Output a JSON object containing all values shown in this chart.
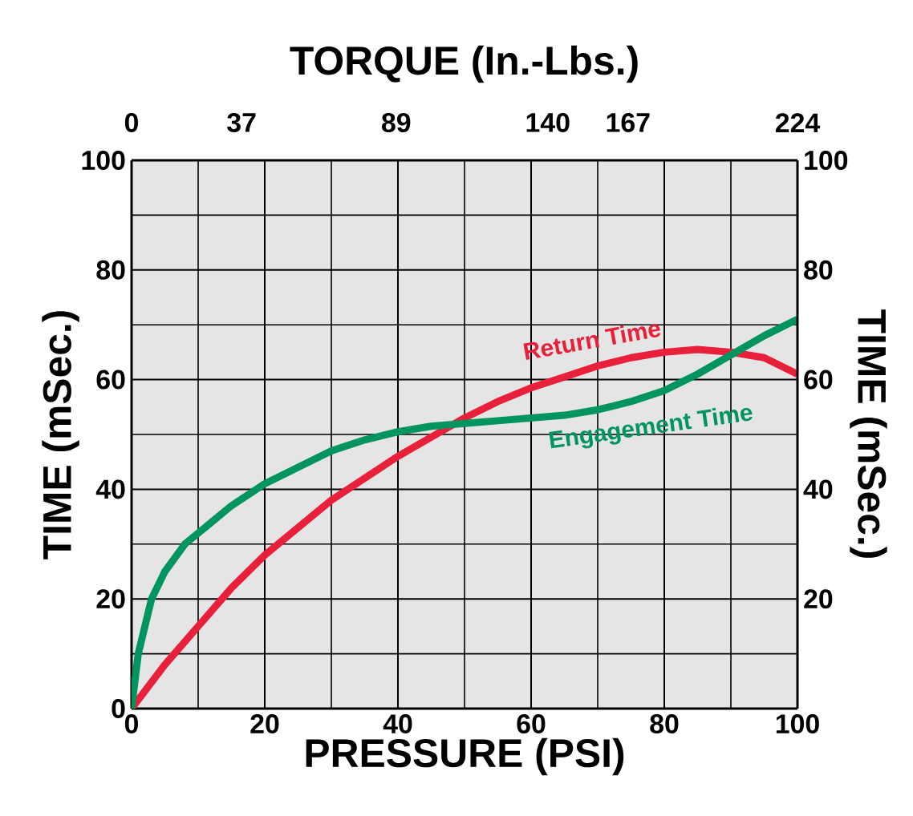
{
  "chart_data": {
    "type": "line",
    "xlabel": "PRESSURE (PSI)",
    "ylabel": "TIME (mSec.)",
    "y2label": "TIME (mSec.)",
    "x2label": "TORQUE (In.-Lbs.)",
    "xlim": [
      0,
      100
    ],
    "xticks": [
      0,
      20,
      40,
      60,
      80,
      100
    ],
    "x2lim": [
      0,
      224
    ],
    "x2ticks": [
      0,
      37,
      89,
      140,
      167,
      224
    ],
    "ylim": [
      0,
      100
    ],
    "yticks": [
      0,
      20,
      40,
      60,
      80,
      100
    ],
    "y2lim": [
      0,
      100
    ],
    "y2ticks": [
      20,
      40,
      60,
      80,
      100
    ],
    "grid": true,
    "legend": false,
    "marker": "none",
    "line_style": "solid",
    "series": [
      {
        "name": "Return Time",
        "color": "#e8203a",
        "x": [
          0,
          5,
          10,
          15,
          20,
          25,
          30,
          35,
          40,
          45,
          50,
          55,
          60,
          65,
          70,
          75,
          80,
          85,
          90,
          95,
          100
        ],
        "values": [
          0,
          8,
          15,
          22,
          28,
          33,
          38,
          42,
          46,
          49.5,
          53,
          56,
          58.5,
          60.5,
          62.5,
          64,
          65,
          65.5,
          65,
          64,
          61
        ]
      },
      {
        "name": "Engagement Time",
        "color": "#00945e",
        "x": [
          0,
          1,
          3,
          5,
          8,
          12,
          15,
          20,
          25,
          30,
          35,
          40,
          45,
          50,
          55,
          60,
          65,
          70,
          75,
          80,
          85,
          90,
          95,
          100
        ],
        "values": [
          0,
          10,
          20,
          25,
          30,
          34,
          37,
          41,
          44,
          47,
          49,
          50.5,
          51.5,
          52,
          52.5,
          53,
          53.5,
          54.5,
          56,
          58,
          61,
          64.5,
          68,
          71
        ]
      }
    ]
  }
}
